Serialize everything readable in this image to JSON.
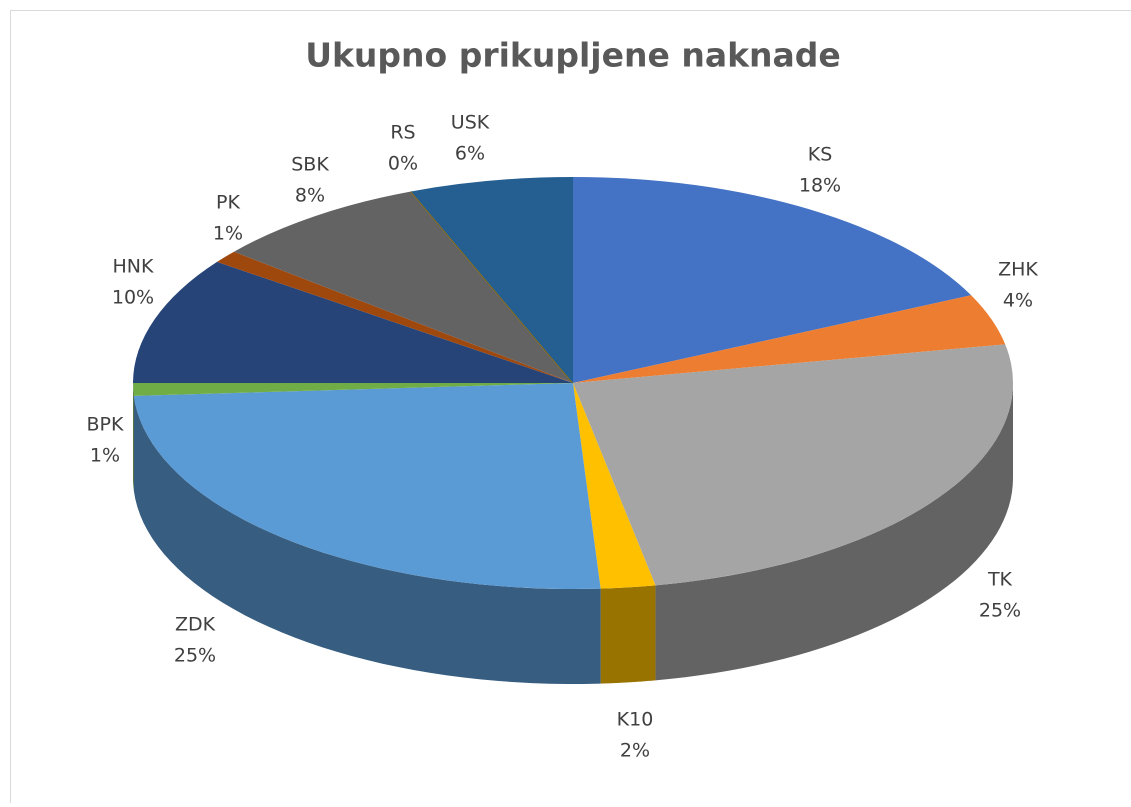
{
  "chart_data": {
    "type": "pie",
    "title": "Ukupno prikupljene naknade",
    "categories": [
      "KS",
      "ZHK",
      "TK",
      "K10",
      "ZDK",
      "BPK",
      "HNK",
      "PK",
      "SBK",
      "RS",
      "USK"
    ],
    "values": [
      18,
      4,
      25,
      2,
      25,
      1,
      10,
      1,
      8,
      0,
      6
    ],
    "value_labels": [
      "18%",
      "4%",
      "25%",
      "2%",
      "25%",
      "1%",
      "10%",
      "1%",
      "8%",
      "0%",
      "6%"
    ],
    "colors": [
      "#4472c4",
      "#ed7d31",
      "#a5a5a5",
      "#ffc000",
      "#5b9bd5",
      "#70ad47",
      "#264478",
      "#9e480e",
      "#636363",
      "#997300",
      "#255e91"
    ]
  }
}
